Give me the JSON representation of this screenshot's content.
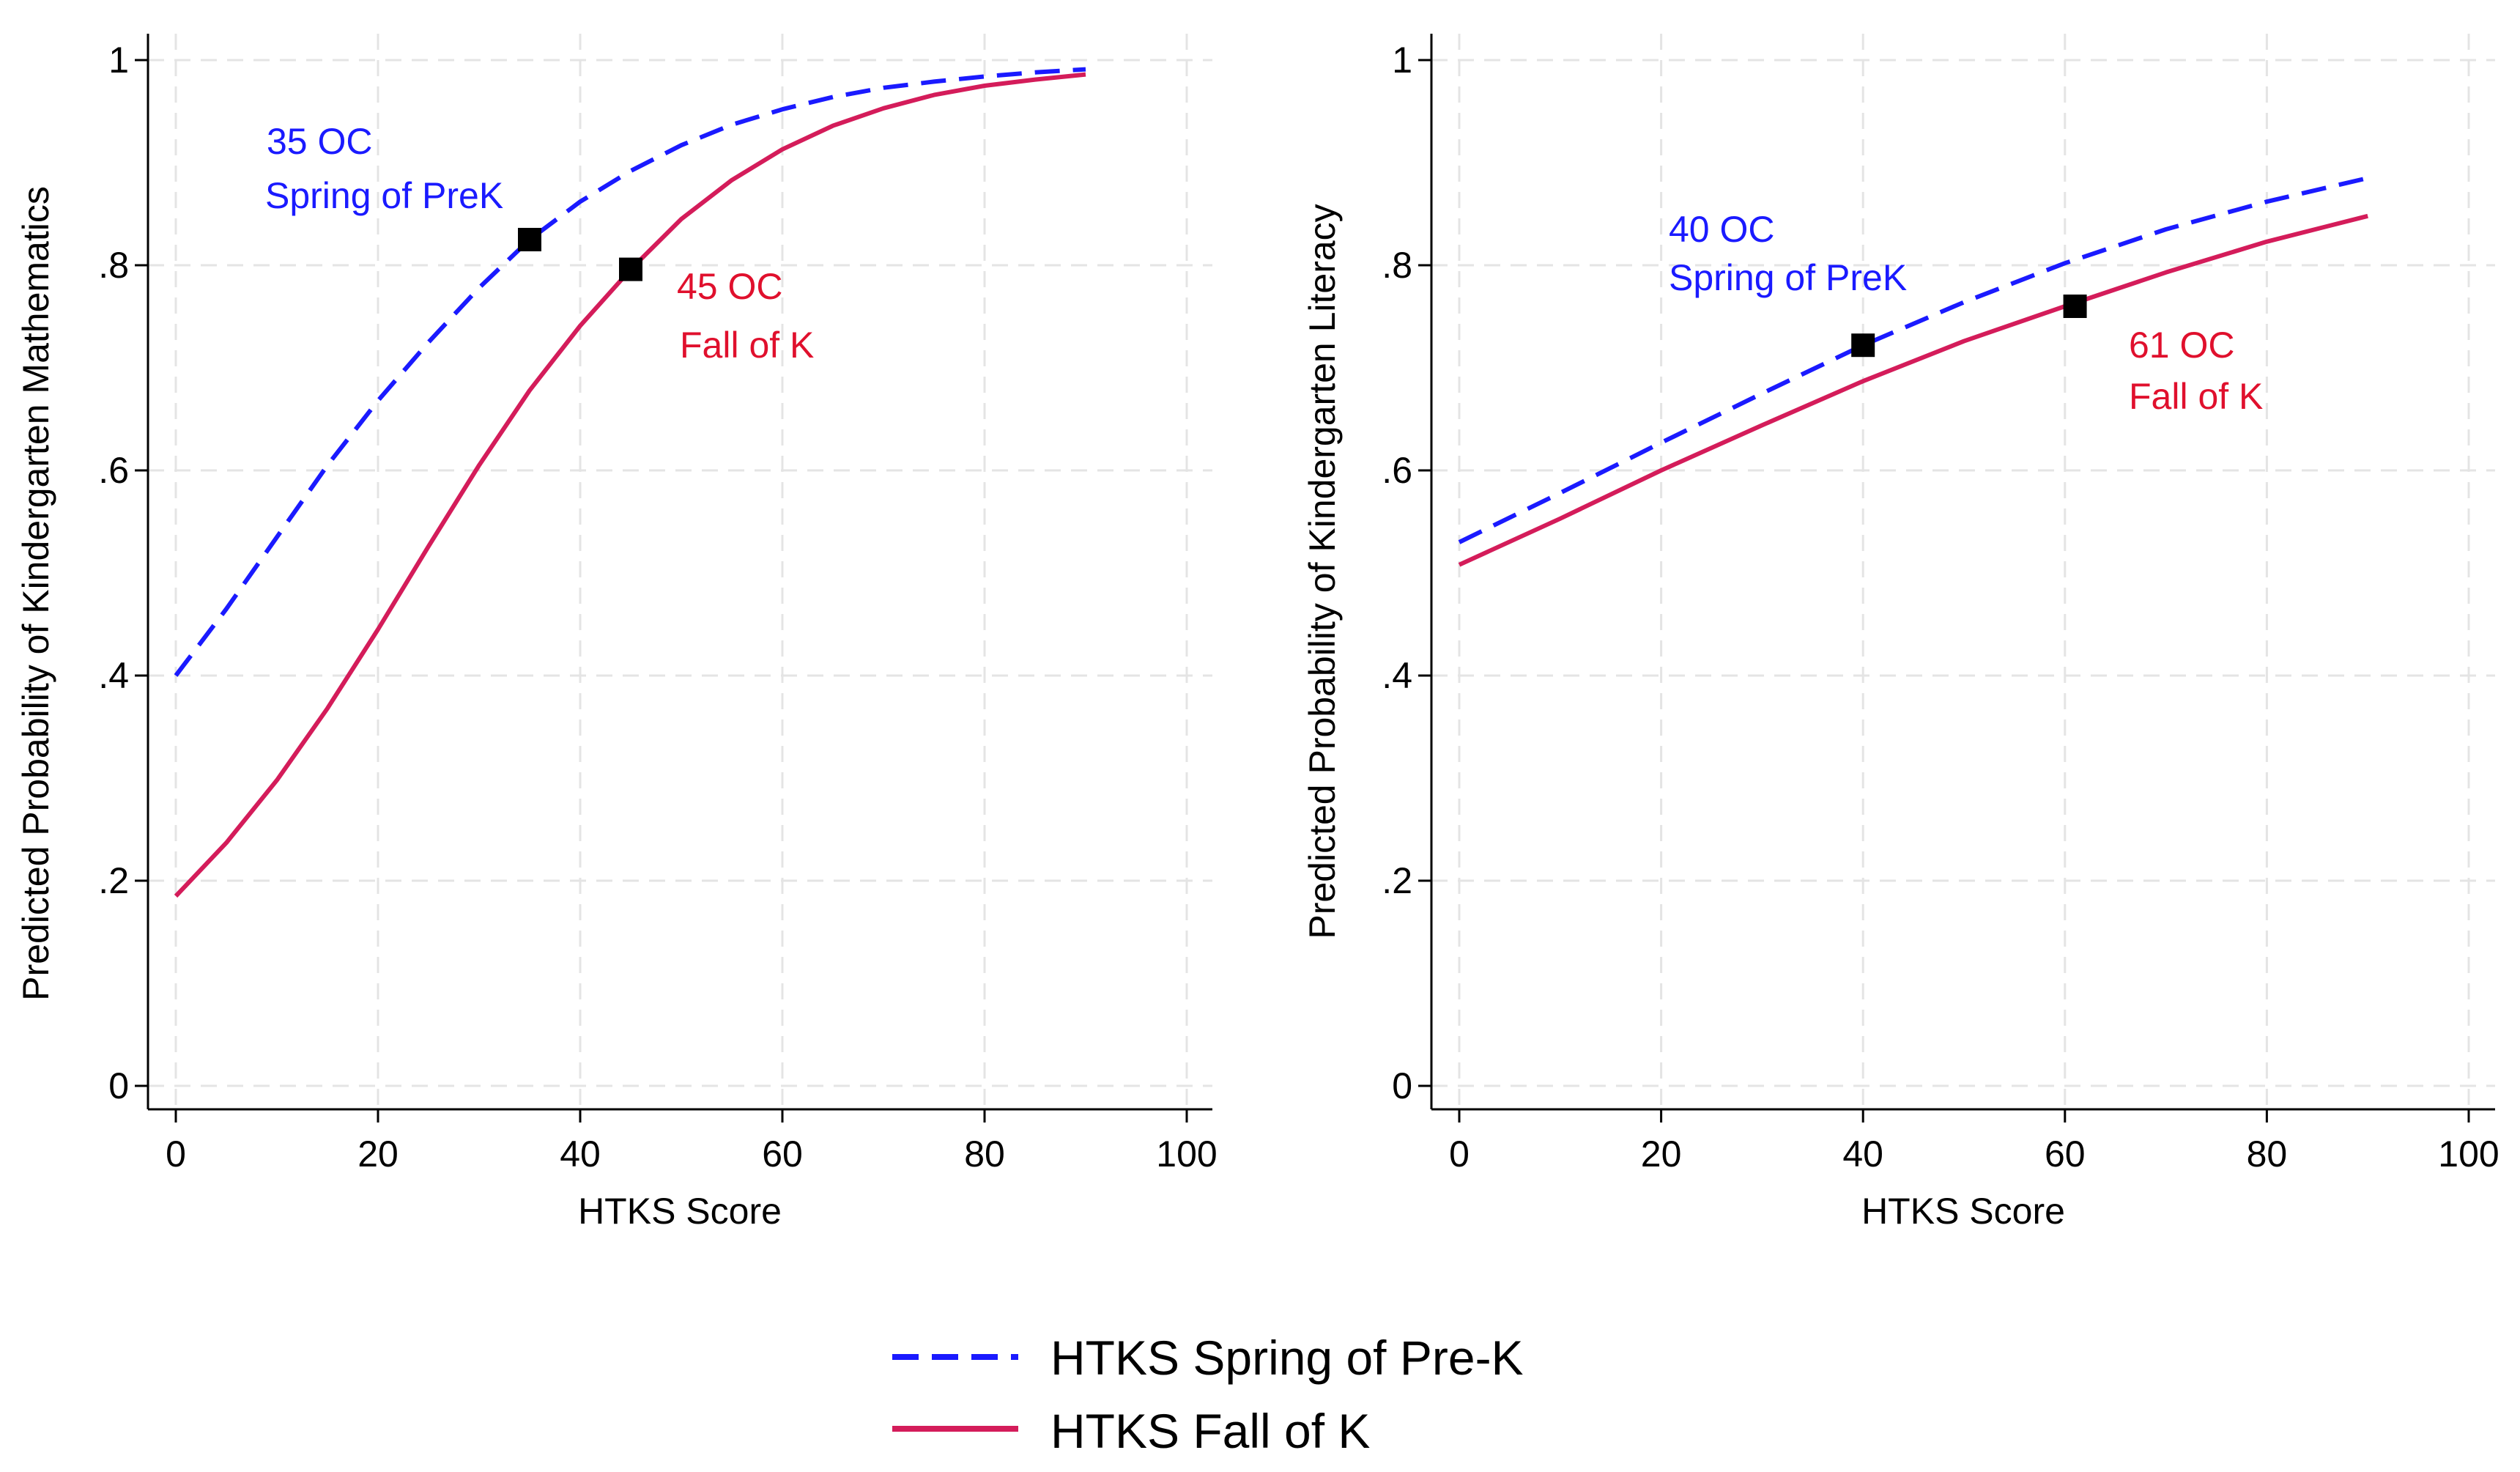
{
  "chart_data": [
    {
      "type": "line",
      "panel": "left",
      "xlabel": "HTKS Score",
      "ylabel": "Predicted Probability of Kindergarten Mathematics",
      "xlim": [
        0,
        100
      ],
      "ylim": [
        0,
        1
      ],
      "xticks": [
        0,
        20,
        40,
        60,
        80,
        100
      ],
      "xtick_labels": [
        "0",
        "20",
        "40",
        "60",
        "80",
        "100"
      ],
      "yticks": [
        0,
        0.2,
        0.4,
        0.6,
        0.8,
        1
      ],
      "ytick_labels": [
        "0",
        ".2",
        ".4",
        ".6",
        ".8",
        "1"
      ],
      "grid": true,
      "series": [
        {
          "name": "HTKS Spring of Pre-K",
          "style": "dashed",
          "color": "#1a1aff",
          "x": [
            0,
            5,
            10,
            15,
            20,
            25,
            30,
            35,
            40,
            45,
            50,
            55,
            60,
            65,
            70,
            75,
            80,
            85,
            90
          ],
          "y": [
            0.4,
            0.465,
            0.535,
            0.605,
            0.668,
            0.725,
            0.778,
            0.825,
            0.862,
            0.892,
            0.917,
            0.937,
            0.952,
            0.964,
            0.973,
            0.979,
            0.984,
            0.988,
            0.991
          ]
        },
        {
          "name": "HTKS Fall of K",
          "style": "solid",
          "color": "#d41c5a",
          "x": [
            0,
            5,
            10,
            15,
            20,
            25,
            30,
            35,
            40,
            45,
            50,
            55,
            60,
            65,
            70,
            75,
            80,
            85,
            90
          ],
          "y": [
            0.185,
            0.237,
            0.298,
            0.368,
            0.445,
            0.526,
            0.605,
            0.678,
            0.741,
            0.796,
            0.845,
            0.883,
            0.913,
            0.936,
            0.953,
            0.966,
            0.975,
            0.981,
            0.986
          ]
        }
      ],
      "markers": [
        {
          "x": 35,
          "y": 0.825
        },
        {
          "x": 45,
          "y": 0.796
        }
      ],
      "annotations": [
        {
          "series": 0,
          "color": "#1a1aff",
          "line1": "35 OC",
          "line2": "Spring of PreK"
        },
        {
          "series": 1,
          "color": "#e0102d",
          "line1": "45 OC",
          "line2": "Fall of K"
        }
      ]
    },
    {
      "type": "line",
      "panel": "right",
      "xlabel": "HTKS Score",
      "ylabel": "Predicted Probability of Kindergarten Literacy",
      "xlim": [
        0,
        100
      ],
      "ylim": [
        0,
        1
      ],
      "xticks": [
        0,
        20,
        40,
        60,
        80,
        100
      ],
      "xtick_labels": [
        "0",
        "20",
        "40",
        "60",
        "80",
        "100"
      ],
      "yticks": [
        0,
        0.2,
        0.4,
        0.6,
        0.8,
        1
      ],
      "ytick_labels": [
        "0",
        ".2",
        ".4",
        ".6",
        ".8",
        "1"
      ],
      "grid": true,
      "series": [
        {
          "name": "HTKS Spring of Pre-K",
          "style": "dashed",
          "color": "#1a1aff",
          "x": [
            0,
            10,
            20,
            30,
            40,
            50,
            60,
            70,
            80,
            90
          ],
          "y": [
            0.53,
            0.578,
            0.627,
            0.675,
            0.722,
            0.764,
            0.802,
            0.835,
            0.862,
            0.885
          ]
        },
        {
          "name": "HTKS Fall of K",
          "style": "solid",
          "color": "#d41c5a",
          "x": [
            0,
            10,
            20,
            30,
            40,
            50,
            60,
            70,
            80,
            90
          ],
          "y": [
            0.508,
            0.553,
            0.6,
            0.644,
            0.687,
            0.726,
            0.76,
            0.793,
            0.823,
            0.848
          ]
        }
      ],
      "markers": [
        {
          "x": 40,
          "y": 0.722
        },
        {
          "x": 61,
          "y": 0.76
        }
      ],
      "annotations": [
        {
          "series": 0,
          "color": "#1a1aff",
          "line1": "40 OC",
          "line2": "Spring of PreK"
        },
        {
          "series": 1,
          "color": "#e0102d",
          "line1": "61 OC",
          "line2": "Fall of K"
        }
      ]
    }
  ],
  "legend": {
    "placement": "bottom-center",
    "items": [
      {
        "label": "HTKS Spring of Pre-K",
        "style": "dashed",
        "color": "#1a1aff"
      },
      {
        "label": "HTKS Fall of K",
        "style": "solid",
        "color": "#d41c5a"
      }
    ]
  }
}
